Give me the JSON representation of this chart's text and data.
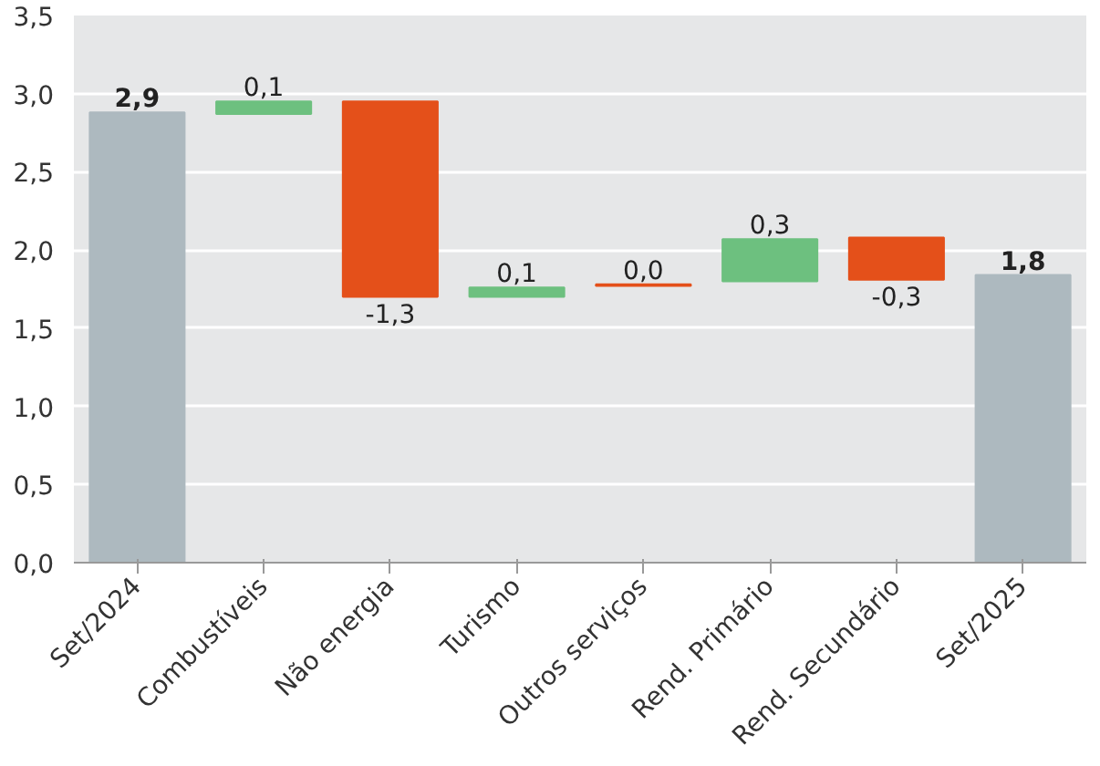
{
  "chart_data": {
    "type": "bar",
    "categories": [
      "Set/2024",
      "Combustíveis",
      "Não energia",
      "Turismo",
      "Outros serviços",
      "Rend. Primário",
      "Rend. Secundário",
      "Set/2025"
    ],
    "values": [
      2.88,
      0.08,
      -1.25,
      0.06,
      0.01,
      0.27,
      -0.27,
      1.84
    ],
    "base": [
      null,
      2.87,
      2.95,
      1.7,
      1.77,
      1.8,
      2.08,
      null
    ],
    "colors": [
      "#adb9bf",
      "#6dc07f",
      "#e4501a",
      "#6dc07f",
      "#e4501a",
      "#6dc07f",
      "#e4501a",
      "#adb9bf"
    ],
    "value_labels": [
      "2,9",
      "0,1",
      "-1,3",
      "0,1",
      "0,0",
      "0,3",
      "-0,3",
      "1,8"
    ],
    "ylim": [
      0,
      3.5
    ],
    "yticks": [
      {
        "value": 0,
        "label": "0,0"
      },
      {
        "value": 0.5,
        "label": "0,5"
      },
      {
        "value": 1,
        "label": "1,0"
      },
      {
        "value": 1.5,
        "label": "1,5"
      },
      {
        "value": 2,
        "label": "2,0"
      },
      {
        "value": 2.5,
        "label": "2,5"
      },
      {
        "value": 3,
        "label": "3,0"
      },
      {
        "value": 3.5,
        "label": "3,5"
      }
    ],
    "grid": "y"
  }
}
